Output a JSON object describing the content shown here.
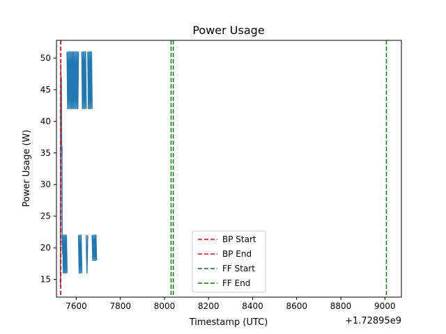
{
  "chart_data": {
    "type": "line",
    "title": "Power Usage",
    "xlabel": "Timestamp (UTC)",
    "ylabel": "Power Usage (W)",
    "x_offset_label": "+1.72895e9",
    "xlim": [
      7510,
      9075
    ],
    "ylim": [
      12.2,
      52.8
    ],
    "x_ticks": [
      7600,
      7800,
      8000,
      8200,
      8400,
      8600,
      8800,
      9000
    ],
    "y_ticks": [
      15,
      20,
      25,
      30,
      35,
      40,
      45,
      50
    ],
    "grid": false,
    "legend_position": "lower-center",
    "series": [
      {
        "color": "#1f77b4",
        "segments": [
          {
            "type": "line",
            "x": [
              7528,
              7529,
              7530,
              7531,
              7532,
              7533,
              7534,
              7535,
              7536,
              7537,
              7538
            ],
            "y": [
              14,
              45,
              49,
              38,
              47,
              40,
              35,
              36,
              21,
              20,
              19
            ]
          },
          {
            "type": "band",
            "x0": 7538,
            "x1": 7558,
            "low": 16,
            "high": 22
          },
          {
            "type": "band",
            "x0": 7558,
            "x1": 7610,
            "low": 42,
            "high": 51
          },
          {
            "type": "band",
            "x0": 7610,
            "x1": 7625,
            "low": 16,
            "high": 22
          },
          {
            "type": "band",
            "x0": 7625,
            "x1": 7645,
            "low": 42,
            "high": 51
          },
          {
            "type": "band",
            "x0": 7645,
            "x1": 7652,
            "low": 16,
            "high": 22
          },
          {
            "type": "band",
            "x0": 7652,
            "x1": 7672,
            "low": 42,
            "high": 51
          },
          {
            "type": "band",
            "x0": 7672,
            "x1": 7692,
            "low": 18,
            "high": 22
          }
        ]
      }
    ],
    "vlines": [
      {
        "name": "BP Start",
        "x": 7529,
        "color": "#ff0000"
      },
      {
        "name": "BP End",
        "x": 7530,
        "color": "#ff0000"
      },
      {
        "name": "FF Start",
        "x": 8030,
        "color": "#008000"
      },
      {
        "name": "FF End",
        "x": 8040,
        "color": "#008000"
      },
      {
        "x": 9007,
        "color": "#008000"
      }
    ]
  }
}
